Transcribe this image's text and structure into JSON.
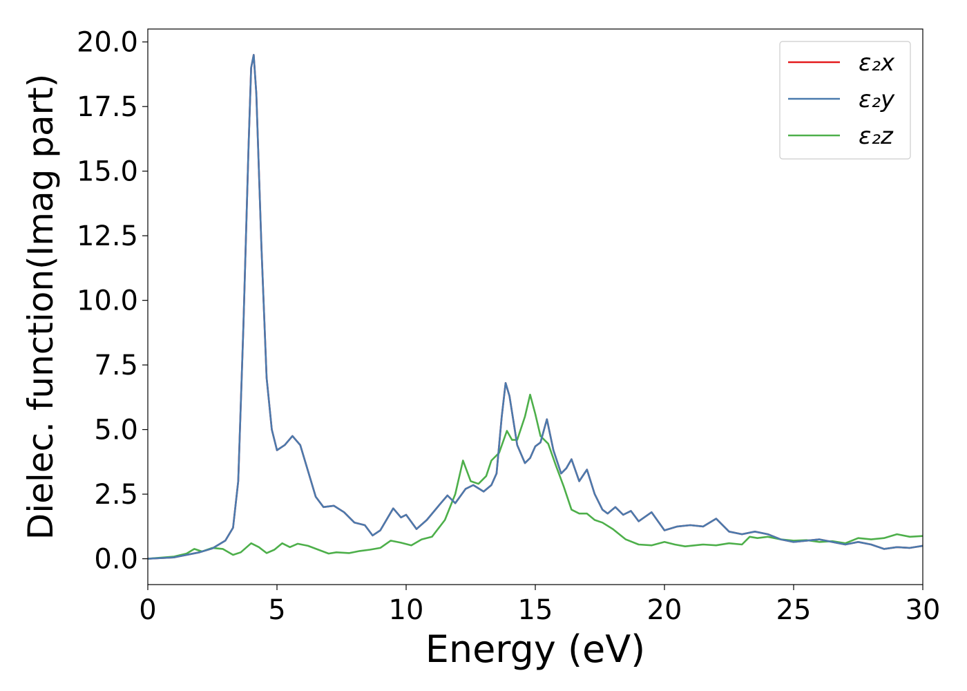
{
  "chart_data": {
    "type": "line",
    "title": "",
    "xlabel": "Energy (eV)",
    "ylabel": "Dielec. function(Imag part)",
    "xlim": [
      0,
      30
    ],
    "ylim": [
      -1,
      20.5
    ],
    "xticks": [
      "0",
      "5",
      "10",
      "15",
      "20",
      "25",
      "30"
    ],
    "yticks": [
      "0.0",
      "2.5",
      "5.0",
      "7.5",
      "10.0",
      "12.5",
      "15.0",
      "17.5",
      "20.0"
    ],
    "grid": false,
    "legend_position": "top-right",
    "series": [
      {
        "name": "ε₂x",
        "color": "#e41a1c",
        "points": [
          [
            0,
            0
          ],
          [
            1,
            0.05
          ],
          [
            2,
            0.25
          ],
          [
            2.5,
            0.4
          ],
          [
            3,
            0.7
          ],
          [
            3.3,
            1.2
          ],
          [
            3.5,
            3
          ],
          [
            3.7,
            9
          ],
          [
            3.9,
            16
          ],
          [
            4.0,
            19
          ],
          [
            4.1,
            19.5
          ],
          [
            4.2,
            18
          ],
          [
            4.4,
            12
          ],
          [
            4.6,
            7
          ],
          [
            4.8,
            5
          ],
          [
            5.0,
            4.2
          ],
          [
            5.3,
            4.4
          ],
          [
            5.6,
            4.75
          ],
          [
            5.9,
            4.4
          ],
          [
            6.2,
            3.4
          ],
          [
            6.5,
            2.4
          ],
          [
            6.8,
            2.0
          ],
          [
            7.2,
            2.05
          ],
          [
            7.6,
            1.8
          ],
          [
            8.0,
            1.4
          ],
          [
            8.4,
            1.3
          ],
          [
            8.7,
            0.9
          ],
          [
            9.0,
            1.1
          ],
          [
            9.5,
            1.95
          ],
          [
            9.8,
            1.6
          ],
          [
            10.0,
            1.7
          ],
          [
            10.4,
            1.15
          ],
          [
            10.8,
            1.5
          ],
          [
            11.3,
            2.1
          ],
          [
            11.6,
            2.45
          ],
          [
            11.9,
            2.15
          ],
          [
            12.3,
            2.7
          ],
          [
            12.6,
            2.85
          ],
          [
            13.0,
            2.6
          ],
          [
            13.3,
            2.85
          ],
          [
            13.5,
            3.3
          ],
          [
            13.7,
            5.5
          ],
          [
            13.85,
            6.8
          ],
          [
            14.0,
            6.3
          ],
          [
            14.3,
            4.4
          ],
          [
            14.6,
            3.7
          ],
          [
            14.8,
            3.9
          ],
          [
            15.0,
            4.35
          ],
          [
            15.2,
            4.5
          ],
          [
            15.45,
            5.4
          ],
          [
            15.7,
            4.2
          ],
          [
            16.0,
            3.3
          ],
          [
            16.2,
            3.5
          ],
          [
            16.4,
            3.85
          ],
          [
            16.7,
            3.0
          ],
          [
            17.0,
            3.45
          ],
          [
            17.3,
            2.5
          ],
          [
            17.6,
            1.9
          ],
          [
            17.8,
            1.75
          ],
          [
            18.1,
            2.0
          ],
          [
            18.4,
            1.7
          ],
          [
            18.7,
            1.85
          ],
          [
            19.0,
            1.45
          ],
          [
            19.5,
            1.8
          ],
          [
            20.0,
            1.1
          ],
          [
            20.5,
            1.25
          ],
          [
            21.0,
            1.3
          ],
          [
            21.5,
            1.25
          ],
          [
            22.0,
            1.55
          ],
          [
            22.5,
            1.05
          ],
          [
            23.0,
            0.95
          ],
          [
            23.5,
            1.05
          ],
          [
            24.0,
            0.95
          ],
          [
            24.5,
            0.75
          ],
          [
            25.0,
            0.65
          ],
          [
            26.0,
            0.75
          ],
          [
            26.5,
            0.65
          ],
          [
            27.0,
            0.55
          ],
          [
            27.5,
            0.65
          ],
          [
            28.0,
            0.55
          ],
          [
            28.5,
            0.38
          ],
          [
            29.0,
            0.45
          ],
          [
            29.5,
            0.42
          ],
          [
            30.0,
            0.5
          ]
        ]
      },
      {
        "name": "ε₂y",
        "color": "#4a7aad",
        "points": [
          [
            0,
            0
          ],
          [
            1,
            0.05
          ],
          [
            2,
            0.25
          ],
          [
            2.5,
            0.4
          ],
          [
            3,
            0.7
          ],
          [
            3.3,
            1.2
          ],
          [
            3.5,
            3
          ],
          [
            3.7,
            9
          ],
          [
            3.9,
            16
          ],
          [
            4.0,
            19
          ],
          [
            4.1,
            19.5
          ],
          [
            4.2,
            18
          ],
          [
            4.4,
            12
          ],
          [
            4.6,
            7
          ],
          [
            4.8,
            5
          ],
          [
            5.0,
            4.2
          ],
          [
            5.3,
            4.4
          ],
          [
            5.6,
            4.75
          ],
          [
            5.9,
            4.4
          ],
          [
            6.2,
            3.4
          ],
          [
            6.5,
            2.4
          ],
          [
            6.8,
            2.0
          ],
          [
            7.2,
            2.05
          ],
          [
            7.6,
            1.8
          ],
          [
            8.0,
            1.4
          ],
          [
            8.4,
            1.3
          ],
          [
            8.7,
            0.9
          ],
          [
            9.0,
            1.1
          ],
          [
            9.5,
            1.95
          ],
          [
            9.8,
            1.6
          ],
          [
            10.0,
            1.7
          ],
          [
            10.4,
            1.15
          ],
          [
            10.8,
            1.5
          ],
          [
            11.3,
            2.1
          ],
          [
            11.6,
            2.45
          ],
          [
            11.9,
            2.15
          ],
          [
            12.3,
            2.7
          ],
          [
            12.6,
            2.85
          ],
          [
            13.0,
            2.6
          ],
          [
            13.3,
            2.85
          ],
          [
            13.5,
            3.3
          ],
          [
            13.7,
            5.5
          ],
          [
            13.85,
            6.8
          ],
          [
            14.0,
            6.3
          ],
          [
            14.3,
            4.4
          ],
          [
            14.6,
            3.7
          ],
          [
            14.8,
            3.9
          ],
          [
            15.0,
            4.35
          ],
          [
            15.2,
            4.5
          ],
          [
            15.45,
            5.4
          ],
          [
            15.7,
            4.2
          ],
          [
            16.0,
            3.3
          ],
          [
            16.2,
            3.5
          ],
          [
            16.4,
            3.85
          ],
          [
            16.7,
            3.0
          ],
          [
            17.0,
            3.45
          ],
          [
            17.3,
            2.5
          ],
          [
            17.6,
            1.9
          ],
          [
            17.8,
            1.75
          ],
          [
            18.1,
            2.0
          ],
          [
            18.4,
            1.7
          ],
          [
            18.7,
            1.85
          ],
          [
            19.0,
            1.45
          ],
          [
            19.5,
            1.8
          ],
          [
            20.0,
            1.1
          ],
          [
            20.5,
            1.25
          ],
          [
            21.0,
            1.3
          ],
          [
            21.5,
            1.25
          ],
          [
            22.0,
            1.55
          ],
          [
            22.5,
            1.05
          ],
          [
            23.0,
            0.95
          ],
          [
            23.5,
            1.05
          ],
          [
            24.0,
            0.95
          ],
          [
            24.5,
            0.75
          ],
          [
            25.0,
            0.65
          ],
          [
            26.0,
            0.75
          ],
          [
            26.5,
            0.65
          ],
          [
            27.0,
            0.55
          ],
          [
            27.5,
            0.65
          ],
          [
            28.0,
            0.55
          ],
          [
            28.5,
            0.38
          ],
          [
            29.0,
            0.45
          ],
          [
            29.5,
            0.42
          ],
          [
            30.0,
            0.5
          ]
        ]
      },
      {
        "name": "ε₂z",
        "color": "#4daf4a",
        "points": [
          [
            0,
            0
          ],
          [
            1,
            0.08
          ],
          [
            1.5,
            0.2
          ],
          [
            1.8,
            0.38
          ],
          [
            2.1,
            0.28
          ],
          [
            2.5,
            0.42
          ],
          [
            2.9,
            0.38
          ],
          [
            3.3,
            0.15
          ],
          [
            3.6,
            0.25
          ],
          [
            4.0,
            0.6
          ],
          [
            4.3,
            0.45
          ],
          [
            4.6,
            0.22
          ],
          [
            4.9,
            0.35
          ],
          [
            5.2,
            0.6
          ],
          [
            5.5,
            0.45
          ],
          [
            5.8,
            0.58
          ],
          [
            6.2,
            0.5
          ],
          [
            6.6,
            0.35
          ],
          [
            7.0,
            0.2
          ],
          [
            7.3,
            0.25
          ],
          [
            7.8,
            0.22
          ],
          [
            8.2,
            0.3
          ],
          [
            8.6,
            0.35
          ],
          [
            9.0,
            0.42
          ],
          [
            9.4,
            0.7
          ],
          [
            9.8,
            0.62
          ],
          [
            10.2,
            0.52
          ],
          [
            10.6,
            0.75
          ],
          [
            11.0,
            0.85
          ],
          [
            11.5,
            1.5
          ],
          [
            11.9,
            2.5
          ],
          [
            12.2,
            3.8
          ],
          [
            12.5,
            3.0
          ],
          [
            12.8,
            2.9
          ],
          [
            13.1,
            3.2
          ],
          [
            13.3,
            3.8
          ],
          [
            13.6,
            4.1
          ],
          [
            13.9,
            4.95
          ],
          [
            14.1,
            4.6
          ],
          [
            14.3,
            4.6
          ],
          [
            14.6,
            5.5
          ],
          [
            14.8,
            6.35
          ],
          [
            15.0,
            5.6
          ],
          [
            15.2,
            4.75
          ],
          [
            15.5,
            4.45
          ],
          [
            15.8,
            3.6
          ],
          [
            16.1,
            2.8
          ],
          [
            16.4,
            1.9
          ],
          [
            16.7,
            1.75
          ],
          [
            17.0,
            1.75
          ],
          [
            17.3,
            1.5
          ],
          [
            17.6,
            1.4
          ],
          [
            18.0,
            1.15
          ],
          [
            18.5,
            0.75
          ],
          [
            19.0,
            0.55
          ],
          [
            19.5,
            0.52
          ],
          [
            20.0,
            0.65
          ],
          [
            20.4,
            0.55
          ],
          [
            20.8,
            0.48
          ],
          [
            21.5,
            0.55
          ],
          [
            22.0,
            0.52
          ],
          [
            22.5,
            0.6
          ],
          [
            23.0,
            0.55
          ],
          [
            23.3,
            0.85
          ],
          [
            23.6,
            0.8
          ],
          [
            24.0,
            0.85
          ],
          [
            24.5,
            0.75
          ],
          [
            25.0,
            0.7
          ],
          [
            25.5,
            0.72
          ],
          [
            26.0,
            0.65
          ],
          [
            26.5,
            0.68
          ],
          [
            27.0,
            0.6
          ],
          [
            27.5,
            0.8
          ],
          [
            28.0,
            0.75
          ],
          [
            28.5,
            0.8
          ],
          [
            29.0,
            0.95
          ],
          [
            29.5,
            0.85
          ],
          [
            30.0,
            0.88
          ]
        ]
      }
    ]
  }
}
